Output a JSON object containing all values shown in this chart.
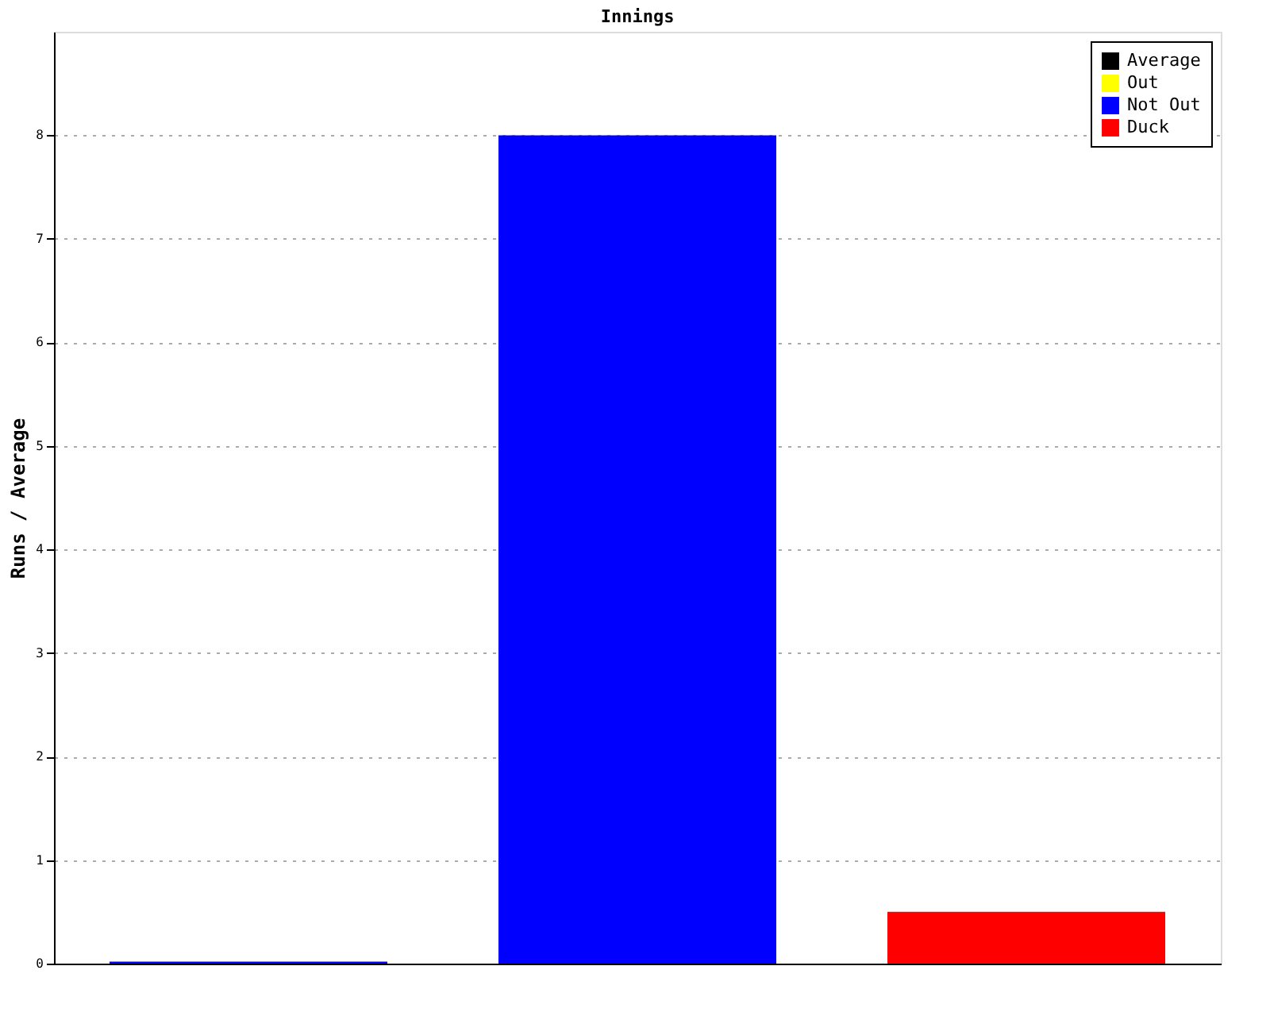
{
  "chart_data": {
    "type": "bar",
    "title": "Innings",
    "ylabel": "Runs / Average",
    "categories": [
      null,
      null,
      null
    ],
    "series": [
      {
        "name": "Average",
        "color": "#000000",
        "values": [
          null,
          null,
          null
        ]
      },
      {
        "name": "Out",
        "color": "#ffff00",
        "values": [
          null,
          null,
          null
        ]
      },
      {
        "name": "Not Out",
        "color": "#0000ff",
        "values": [
          0.02,
          8,
          null
        ]
      },
      {
        "name": "Duck",
        "color": "#ff0000",
        "values": [
          null,
          null,
          0.5
        ]
      }
    ],
    "ylim": [
      0,
      9
    ],
    "yticks": [
      0,
      1,
      2,
      3,
      4,
      5,
      6,
      7,
      8
    ],
    "grid": "y",
    "legend": "top right",
    "tick_labels": "y"
  }
}
